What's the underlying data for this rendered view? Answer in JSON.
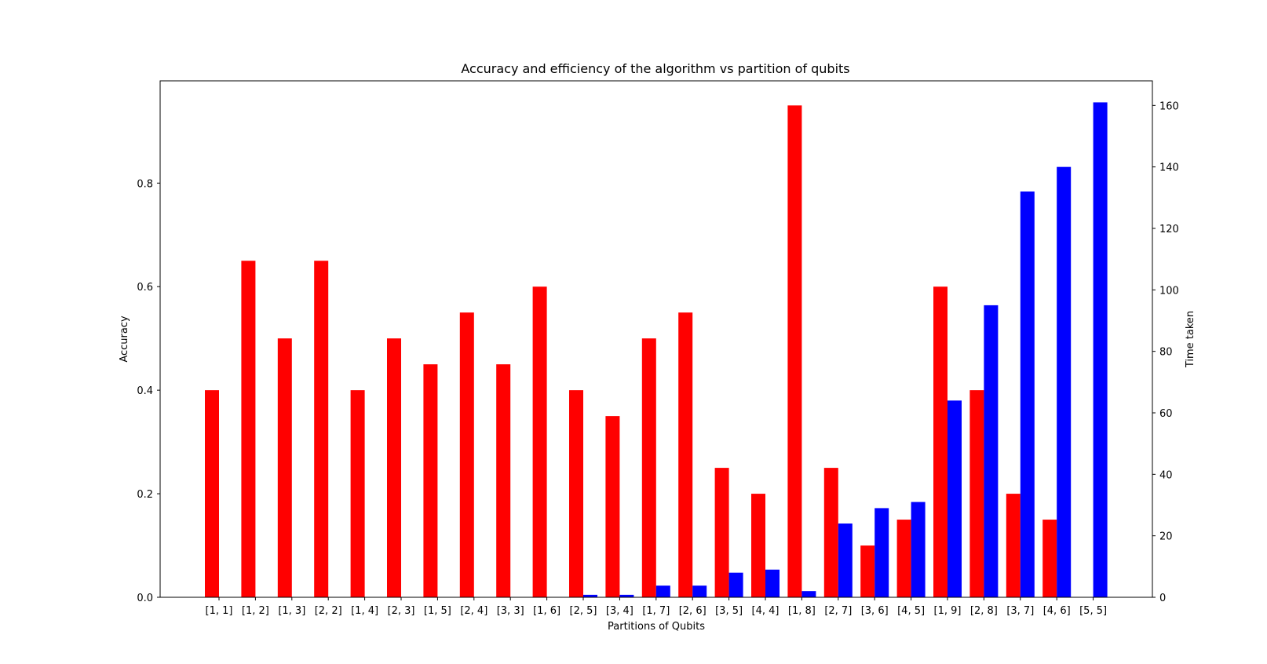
{
  "chart_data": {
    "type": "bar",
    "title": "Accuracy and efficiency of the algorithm vs partition of qubits",
    "xlabel": "Partitions of Qubits",
    "ylabel": "Accuracy",
    "y2label": "Time taken",
    "categories": [
      "[1, 1]",
      "[1, 2]",
      "[1, 3]",
      "[2, 2]",
      "[1, 4]",
      "[2, 3]",
      "[1, 5]",
      "[2, 4]",
      "[3, 3]",
      "[1, 6]",
      "[2, 5]",
      "[3, 4]",
      "[1, 7]",
      "[2, 6]",
      "[3, 5]",
      "[4, 4]",
      "[1, 8]",
      "[2, 7]",
      "[3, 6]",
      "[4, 5]",
      "[1, 9]",
      "[2, 8]",
      "[3, 7]",
      "[4, 6]",
      "[5, 5]"
    ],
    "series": [
      {
        "axis": "left",
        "color": "#ff0000",
        "values": [
          0.4,
          0.65,
          0.5,
          0.65,
          0.4,
          0.5,
          0.45,
          0.55,
          0.45,
          0.6,
          0.4,
          0.35,
          0.5,
          0.55,
          0.25,
          0.2,
          0.95,
          0.25,
          0.1,
          0.15,
          0.6,
          0.4,
          0.2,
          0.15,
          0.0
        ]
      },
      {
        "axis": "right",
        "color": "#0000ff",
        "values": [
          0.0,
          0.0,
          0.0,
          0.0,
          0.0,
          0.0,
          0.0,
          0.0,
          0.0,
          0.0,
          0.8,
          0.8,
          3.8,
          3.8,
          8.0,
          9.0,
          2.0,
          24.0,
          29.0,
          31.0,
          64.0,
          95.0,
          132.0,
          140.0,
          161.0
        ]
      }
    ],
    "ylim": [
      0,
      0.9975
    ],
    "y2lim": [
      0,
      168.0
    ],
    "yticks": [
      0.0,
      0.2,
      0.4,
      0.6,
      0.8
    ],
    "y2ticks": [
      0,
      20,
      40,
      60,
      80,
      100,
      120,
      140,
      160
    ],
    "legend": "none",
    "grid": false
  }
}
